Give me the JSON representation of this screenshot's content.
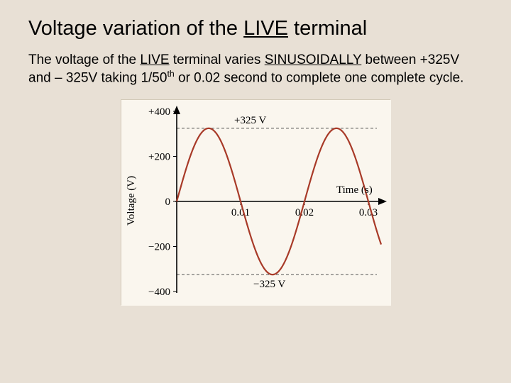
{
  "title": {
    "pre": "Voltage variation of the ",
    "live": "LIVE",
    "post": " terminal"
  },
  "desc": {
    "t1": "The voltage of the ",
    "live": "LIVE",
    "t2": " terminal varies ",
    "sinus": "SINUSOIDALLY",
    "t3": " between +325V and – 325V taking 1/50",
    "sup": "th",
    "t4": " or 0.02 second to complete one complete cycle."
  },
  "chart": {
    "type": "line",
    "background_color": "#faf6ee",
    "axis_color": "#000000",
    "grid_dash": "4,3",
    "dash_color": "#555555",
    "curve_color": "#a83a28",
    "curve_width": 2.2,
    "ylabel": "Voltage (V)",
    "xlabel": "Time (s)",
    "ylim": [
      -400,
      400
    ],
    "xlim": [
      0,
      0.032
    ],
    "yticks": [
      {
        "v": 400,
        "label": "+400"
      },
      {
        "v": 200,
        "label": "+200"
      },
      {
        "v": 0,
        "label": "0"
      },
      {
        "v": -200,
        "label": "−200"
      },
      {
        "v": -400,
        "label": "−400"
      }
    ],
    "xticks": [
      {
        "v": 0.01,
        "label": "0.01"
      },
      {
        "v": 0.02,
        "label": "0.02"
      },
      {
        "v": 0.03,
        "label": "0.03"
      }
    ],
    "amplitude": 325,
    "period": 0.02,
    "peak_labels": {
      "top": "+325 V",
      "bottom": "−325 V"
    },
    "label_fontsize": 15,
    "tick_fontsize": 15
  }
}
